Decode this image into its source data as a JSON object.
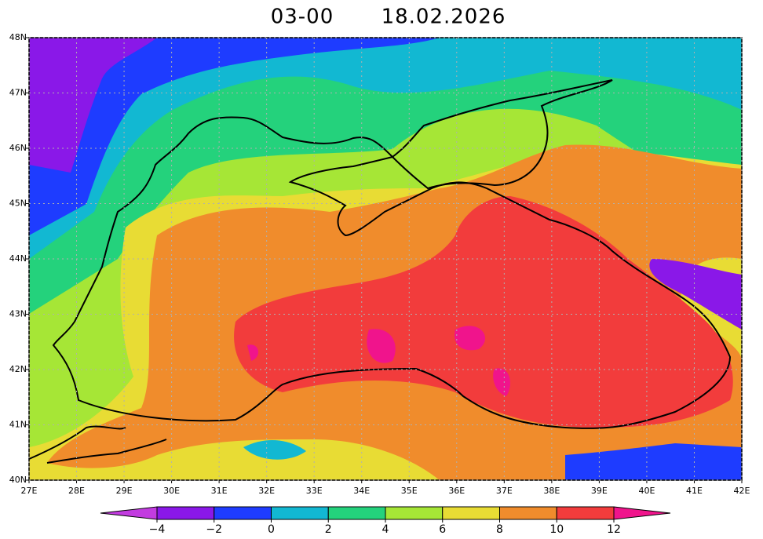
{
  "map": {
    "title_time": "03-00",
    "title_date": "18.02.2026",
    "lon_ticks": [
      {
        "value": 27,
        "label": "27E"
      },
      {
        "value": 28,
        "label": "28E"
      },
      {
        "value": 29,
        "label": "29E"
      },
      {
        "value": 30,
        "label": "30E"
      },
      {
        "value": 31,
        "label": "31E"
      },
      {
        "value": 32,
        "label": "32E"
      },
      {
        "value": 33,
        "label": "33E"
      },
      {
        "value": 34,
        "label": "34E"
      },
      {
        "value": 35,
        "label": "35E"
      },
      {
        "value": 36,
        "label": "36E"
      },
      {
        "value": 37,
        "label": "37E"
      },
      {
        "value": 38,
        "label": "38E"
      },
      {
        "value": 39,
        "label": "39E"
      },
      {
        "value": 40,
        "label": "40E"
      },
      {
        "value": 41,
        "label": "41E"
      },
      {
        "value": 42,
        "label": "42E"
      }
    ],
    "lat_ticks": [
      {
        "value": 40,
        "label": "40N"
      },
      {
        "value": 41,
        "label": "41N"
      },
      {
        "value": 42,
        "label": "42N"
      },
      {
        "value": 43,
        "label": "43N"
      },
      {
        "value": 44,
        "label": "44N"
      },
      {
        "value": 45,
        "label": "45N"
      },
      {
        "value": 46,
        "label": "46N"
      },
      {
        "value": 47,
        "label": "47N"
      },
      {
        "value": 48,
        "label": "48N"
      }
    ],
    "colorbar": {
      "ticks": [
        {
          "value": -4,
          "label": "−4"
        },
        {
          "value": -2,
          "label": "−2"
        },
        0,
        2,
        4,
        6,
        8,
        10,
        12
      ],
      "colors": [
        "#c23ce0",
        "#8a18e8",
        "#1e3cff",
        "#12b8d2",
        "#24d27c",
        "#a6e636",
        "#e8dc34",
        "#f08c2c",
        "#f23c3c",
        "#f0148c"
      ]
    }
  }
}
